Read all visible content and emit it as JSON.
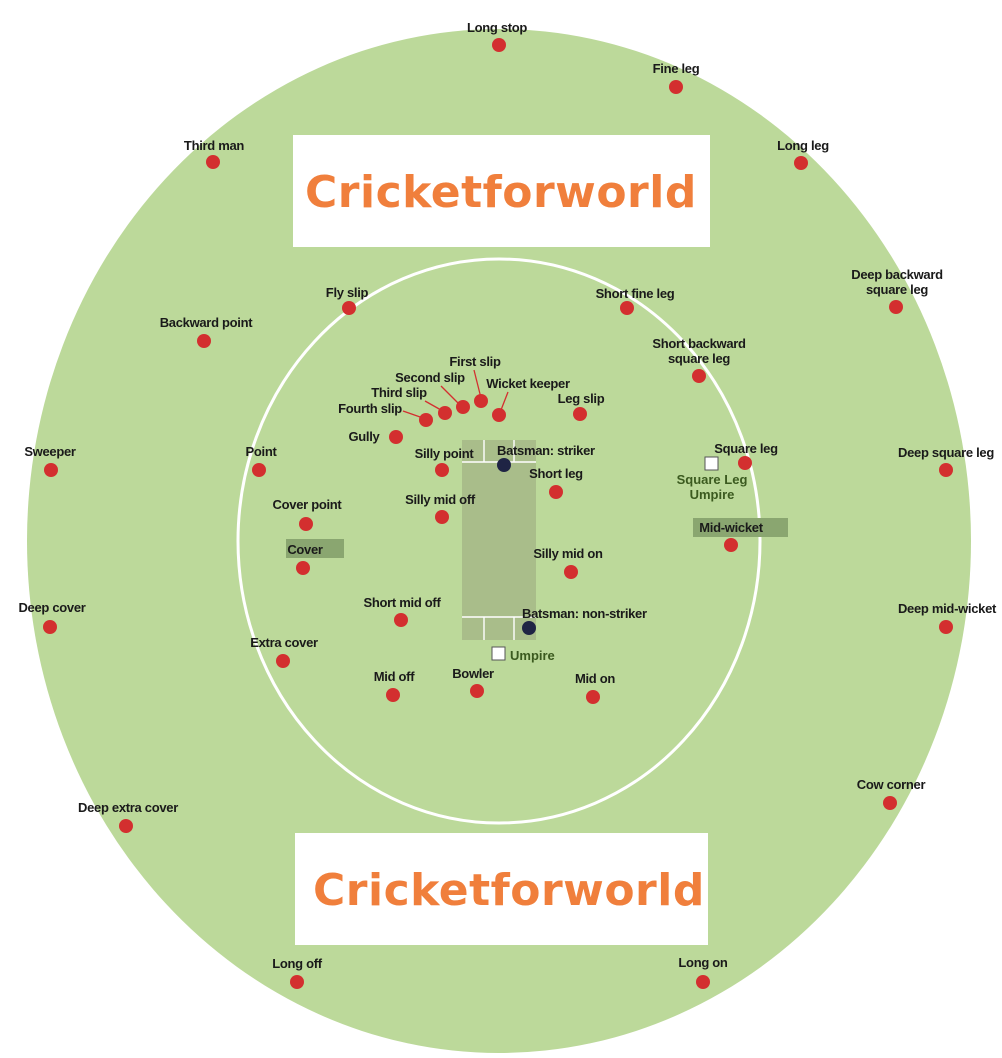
{
  "colors": {
    "field": "#bcd99a",
    "boundary_line": "#ffffff",
    "pitch": "#a9bd8a",
    "fielder": "#d32f2f",
    "batsman": "#1f2444",
    "watermark_text": "#f07f3c",
    "umpire_text": "#3b5a1f",
    "label_text": "#1a1a1a"
  },
  "watermarks": [
    "Cricketforworld",
    "Cricketforworld"
  ],
  "fielders": [
    {
      "id": "long-stop",
      "label": [
        "Long stop"
      ]
    },
    {
      "id": "fine-leg",
      "label": [
        "Fine leg"
      ]
    },
    {
      "id": "third-man",
      "label": [
        "Third man"
      ]
    },
    {
      "id": "long-leg",
      "label": [
        "Long leg"
      ]
    },
    {
      "id": "deep-backward-square-leg",
      "label": [
        "Deep backward",
        "square leg"
      ]
    },
    {
      "id": "fly-slip",
      "label": [
        "Fly slip"
      ]
    },
    {
      "id": "short-fine-leg",
      "label": [
        "Short fine leg"
      ]
    },
    {
      "id": "backward-point",
      "label": [
        "Backward point"
      ]
    },
    {
      "id": "short-backward-square-leg",
      "label": [
        "Short backward",
        "square leg"
      ]
    },
    {
      "id": "first-slip",
      "label": [
        "First slip"
      ]
    },
    {
      "id": "second-slip",
      "label": [
        "Second slip"
      ]
    },
    {
      "id": "wicket-keeper",
      "label": [
        "Wicket keeper"
      ]
    },
    {
      "id": "third-slip",
      "label": [
        "Third slip"
      ]
    },
    {
      "id": "leg-slip",
      "label": [
        "Leg slip"
      ]
    },
    {
      "id": "fourth-slip",
      "label": [
        "Fourth slip"
      ]
    },
    {
      "id": "gully",
      "label": [
        "Gully"
      ]
    },
    {
      "id": "sweeper",
      "label": [
        "Sweeper"
      ]
    },
    {
      "id": "point",
      "label": [
        "Point"
      ]
    },
    {
      "id": "silly-point",
      "label": [
        "Silly point"
      ]
    },
    {
      "id": "square-leg",
      "label": [
        "Square leg"
      ]
    },
    {
      "id": "deep-square-leg",
      "label": [
        "Deep square leg"
      ]
    },
    {
      "id": "short-leg",
      "label": [
        "Short leg"
      ]
    },
    {
      "id": "silly-mid-off",
      "label": [
        "Silly mid off"
      ]
    },
    {
      "id": "cover-point",
      "label": [
        "Cover point"
      ]
    },
    {
      "id": "mid-wicket",
      "label": [
        "Mid-wicket"
      ]
    },
    {
      "id": "cover",
      "label": [
        "Cover"
      ]
    },
    {
      "id": "silly-mid-on",
      "label": [
        "Silly mid on"
      ]
    },
    {
      "id": "deep-cover",
      "label": [
        "Deep cover"
      ]
    },
    {
      "id": "short-mid-off",
      "label": [
        "Short mid off"
      ]
    },
    {
      "id": "deep-mid-wicket",
      "label": [
        "Deep mid-wicket"
      ]
    },
    {
      "id": "extra-cover",
      "label": [
        "Extra cover"
      ]
    },
    {
      "id": "mid-off",
      "label": [
        "Mid off"
      ]
    },
    {
      "id": "bowler",
      "label": [
        "Bowler"
      ]
    },
    {
      "id": "mid-on",
      "label": [
        "Mid on"
      ]
    },
    {
      "id": "cow-corner",
      "label": [
        "Cow  corner"
      ]
    },
    {
      "id": "deep-extra-cover",
      "label": [
        "Deep extra cover"
      ]
    },
    {
      "id": "long-off",
      "label": [
        "Long off"
      ]
    },
    {
      "id": "long-on",
      "label": [
        "Long on"
      ]
    }
  ],
  "batsmen": [
    {
      "id": "striker",
      "label": "Batsman: striker"
    },
    {
      "id": "non-striker",
      "label": "Batsman: non-striker"
    }
  ],
  "umpires": [
    {
      "id": "square-leg-umpire",
      "label": [
        "Square Leg",
        "Umpire"
      ]
    },
    {
      "id": "bowlers-end-umpire",
      "label": [
        "Umpire"
      ]
    }
  ]
}
